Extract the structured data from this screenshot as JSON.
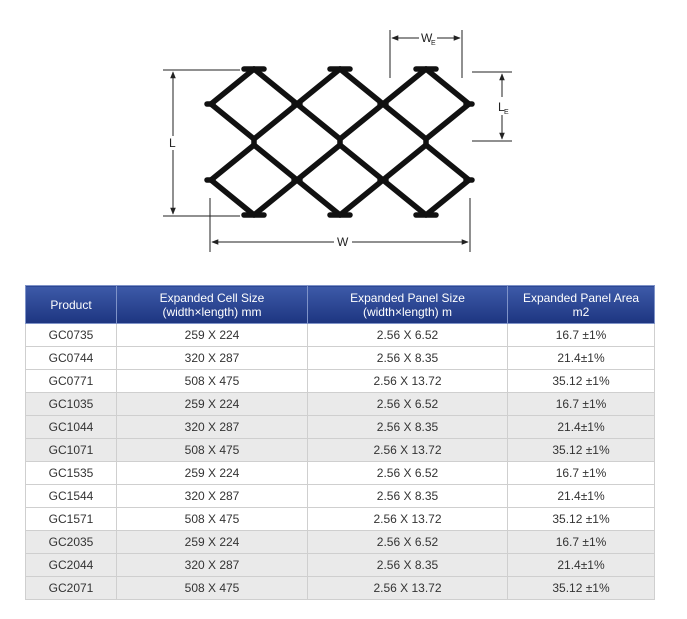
{
  "diagram": {
    "label_we": "W",
    "label_we_sub": "E",
    "label_le": "L",
    "label_le_sub": "E",
    "label_l": "L",
    "label_w": "W"
  },
  "table": {
    "headers": [
      {
        "line1": "Product",
        "line2": ""
      },
      {
        "line1": "Expanded Cell Size",
        "line2": "(width×length) mm"
      },
      {
        "line1": "Expanded Panel Size",
        "line2": "(width×length) m"
      },
      {
        "line1": "Expanded Panel Area",
        "line2": "m2"
      }
    ],
    "rows": [
      [
        "GC0735",
        "259 X 224",
        "2.56 X 6.52",
        "16.7 ±1%"
      ],
      [
        "GC0744",
        "320 X 287",
        "2.56 X 8.35",
        "21.4±1%"
      ],
      [
        "GC0771",
        "508 X 475",
        "2.56 X 13.72",
        "35.12 ±1%"
      ],
      [
        "GC1035",
        "259 X 224",
        "2.56 X 6.52",
        "16.7 ±1%"
      ],
      [
        "GC1044",
        "320 X 287",
        "2.56 X 8.35",
        "21.4±1%"
      ],
      [
        "GC1071",
        "508 X 475",
        "2.56 X 13.72",
        "35.12 ±1%"
      ],
      [
        "GC1535",
        "259 X 224",
        "2.56 X 6.52",
        "16.7 ±1%"
      ],
      [
        "GC1544",
        "320 X 287",
        "2.56 X 8.35",
        "21.4±1%"
      ],
      [
        "GC1571",
        "508 X 475",
        "2.56 X 13.72",
        "35.12 ±1%"
      ],
      [
        "GC2035",
        "259 X 224",
        "2.56 X 6.52",
        "16.7 ±1%"
      ],
      [
        "GC2044",
        "320 X 287",
        "2.56 X 8.35",
        "21.4±1%"
      ],
      [
        "GC2071",
        "508 X 475",
        "2.56 X 13.72",
        "35.12 ±1%"
      ]
    ]
  }
}
